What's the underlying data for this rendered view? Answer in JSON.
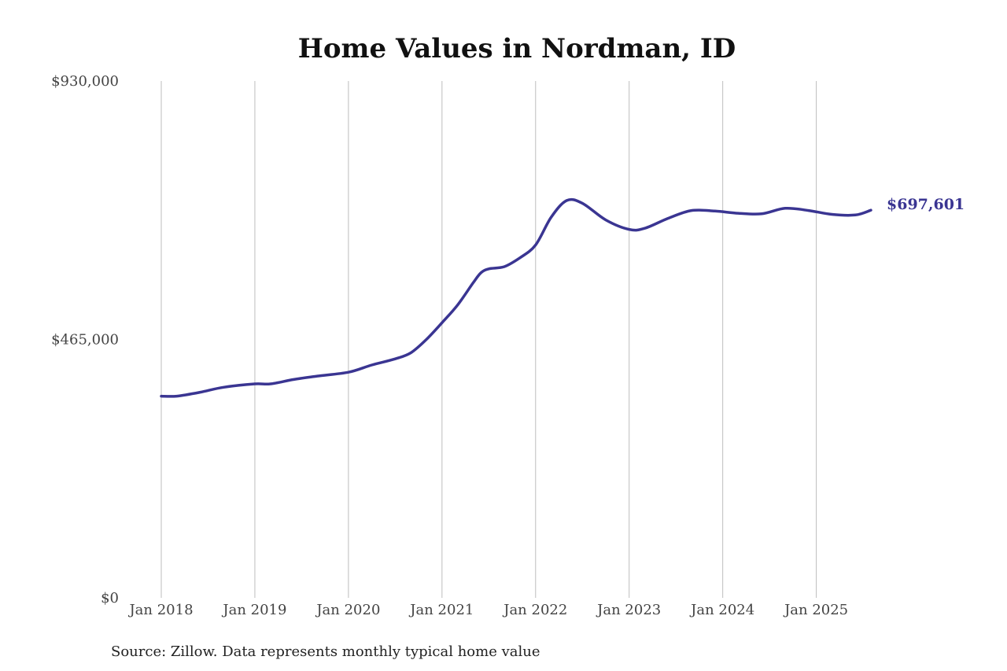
{
  "chart_data": {
    "type": "line",
    "title": "Home Values in Nordman, ID",
    "source": "Source: Zillow. Data represents monthly typical home value",
    "ylim": [
      0,
      930000
    ],
    "yticks": [
      "$0",
      "$465,000",
      "$930,000"
    ],
    "ytick_values": [
      0,
      465000,
      930000
    ],
    "xlim": [
      "2018-01",
      "2025-08"
    ],
    "xticks": [
      "Jan 2018",
      "Jan 2019",
      "Jan 2020",
      "Jan 2021",
      "Jan 2022",
      "Jan 2023",
      "Jan 2024",
      "Jan 2025"
    ],
    "xtick_dates": [
      "2018-01",
      "2019-01",
      "2020-01",
      "2021-01",
      "2022-01",
      "2023-01",
      "2024-01",
      "2025-01"
    ],
    "grid": "vertical",
    "line_color": "#3a3592",
    "end_label": "$697,601",
    "series": [
      {
        "points": [
          [
            "2018-01",
            363000
          ],
          [
            "2018-03",
            363000
          ],
          [
            "2018-06",
            370000
          ],
          [
            "2018-09",
            379000
          ],
          [
            "2019-01",
            385000
          ],
          [
            "2019-03",
            385000
          ],
          [
            "2019-06",
            393000
          ],
          [
            "2019-09",
            399000
          ],
          [
            "2020-01",
            406000
          ],
          [
            "2020-04",
            419000
          ],
          [
            "2020-07",
            430000
          ],
          [
            "2020-09",
            441000
          ],
          [
            "2020-11",
            465000
          ],
          [
            "2021-01",
            495000
          ],
          [
            "2021-03",
            527000
          ],
          [
            "2021-05",
            567000
          ],
          [
            "2021-06",
            585000
          ],
          [
            "2021-07",
            592000
          ],
          [
            "2021-09",
            596000
          ],
          [
            "2021-11",
            612000
          ],
          [
            "2022-01",
            635000
          ],
          [
            "2022-03",
            685000
          ],
          [
            "2022-05",
            715000
          ],
          [
            "2022-07",
            710000
          ],
          [
            "2022-10",
            680000
          ],
          [
            "2023-01",
            663000
          ],
          [
            "2023-03",
            665000
          ],
          [
            "2023-06",
            683000
          ],
          [
            "2023-09",
            697000
          ],
          [
            "2023-12",
            696000
          ],
          [
            "2024-03",
            692000
          ],
          [
            "2024-06",
            691000
          ],
          [
            "2024-09",
            701000
          ],
          [
            "2024-12",
            697000
          ],
          [
            "2025-03",
            690000
          ],
          [
            "2025-06",
            689000
          ],
          [
            "2025-08",
            697601
          ]
        ]
      }
    ]
  }
}
